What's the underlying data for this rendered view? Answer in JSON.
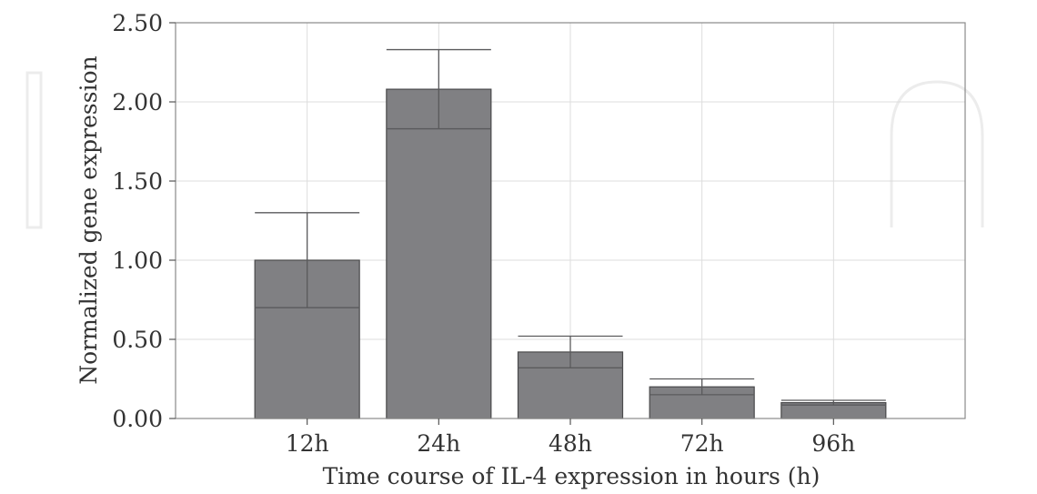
{
  "chart_data": {
    "type": "bar",
    "categories": [
      "12h",
      "24h",
      "48h",
      "72h",
      "96h"
    ],
    "values": [
      1.0,
      2.08,
      0.42,
      0.2,
      0.1
    ],
    "error": [
      0.3,
      0.25,
      0.1,
      0.05,
      0.015
    ],
    "ylim": [
      0,
      2.5
    ],
    "yticks": [
      "0.00",
      "0.50",
      "1.00",
      "1.50",
      "2.00",
      "2.50"
    ],
    "ytick_values": [
      0,
      0.5,
      1.0,
      1.5,
      2.0,
      2.5
    ],
    "xlabel": "Time course of IL-4 expression in hours (h)",
    "ylabel": "Normalized gene expression",
    "grid": true,
    "colors": {
      "bar": "#808083",
      "bar_edge": "#4a4a4c",
      "grid": "#dddddd"
    }
  }
}
